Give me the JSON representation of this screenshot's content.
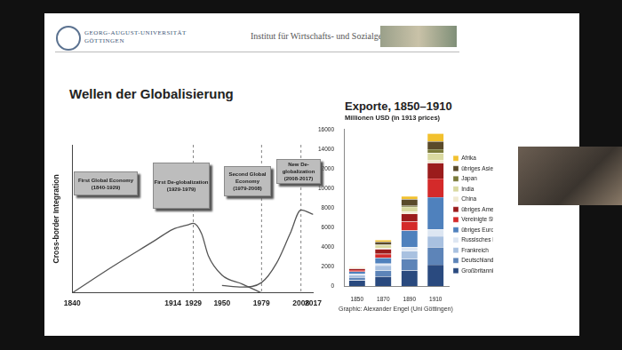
{
  "header": {
    "university": "GEORG-AUGUST-UNIVERSITÄT\nGÖTTINGEN",
    "institute": "Institut für Wirtschafts- und Sozialgeschichte"
  },
  "title": "Wellen der Globalisierung",
  "chart_data": [
    {
      "type": "line",
      "y_label": "Cross-border Integration",
      "series": [
        {
          "x": [
            1840,
            1870,
            1900,
            1914,
            1925,
            1929,
            1935,
            1940,
            1950,
            1965,
            1979
          ],
          "values": [
            0,
            18,
            35,
            43,
            46,
            47,
            40,
            25,
            12,
            6,
            0
          ],
          "color": "#555555",
          "line_style": "solid"
        },
        {
          "x": [
            1950,
            1965,
            1979,
            1990,
            2000,
            2008,
            2017
          ],
          "values": [
            5,
            4,
            7,
            20,
            40,
            56,
            53
          ],
          "color": "#555555",
          "line_style": "solid"
        }
      ],
      "xlim": [
        1840,
        2017
      ],
      "xticks": [
        1840,
        1914,
        1929,
        1950,
        1979,
        2008,
        2017
      ],
      "ylim": [
        0,
        100
      ],
      "tick_labels": "x",
      "grid": false,
      "vlines": [
        1929,
        1979,
        2008
      ],
      "annotations": [
        {
          "title": "First Global Economy",
          "period": "(1840-1929)"
        },
        {
          "title": "First De-globalization",
          "period": "(1929-1979)"
        },
        {
          "title": "Second Global Economy",
          "period": "(1979-2008)"
        },
        {
          "title": "New De-globalization",
          "period": "(2008-2017)"
        }
      ]
    },
    {
      "type": "bar",
      "title": "Exporte, 1850–1910",
      "subtitle": "Millionen USD (in 1913 prices)",
      "categories": [
        "1850",
        "1870",
        "1890",
        "1910"
      ],
      "stacked": true,
      "ylim": [
        0,
        16000
      ],
      "yticks": [
        0,
        2000,
        4000,
        6000,
        8000,
        10000,
        12000,
        14000,
        16000
      ],
      "grid": false,
      "legend": "right",
      "series": [
        {
          "name": "Großbritannien",
          "color": "#2a4a7f",
          "values": [
            600,
            1000,
            1600,
            2200
          ]
        },
        {
          "name": "Deutschland",
          "color": "#5d84b8",
          "values": [
            300,
            600,
            1200,
            1800
          ]
        },
        {
          "name": "Frankreich",
          "color": "#a9c1e0",
          "values": [
            250,
            500,
            800,
            1100
          ]
        },
        {
          "name": "Russisches Reich",
          "color": "#dde6f2",
          "values": [
            100,
            200,
            400,
            700
          ]
        },
        {
          "name": "übriges Europa",
          "color": "#4f81bd",
          "values": [
            250,
            600,
            1700,
            3300
          ]
        },
        {
          "name": "Vereinigte Staaten",
          "color": "#d42a2a",
          "values": [
            150,
            400,
            900,
            1900
          ]
        },
        {
          "name": "übriges Amerika",
          "color": "#9b1c1c",
          "values": [
            150,
            500,
            800,
            1600
          ]
        },
        {
          "name": "China",
          "color": "#f0ead0",
          "values": [
            30,
            100,
            200,
            300
          ]
        },
        {
          "name": "India",
          "color": "#d9d9a0",
          "values": [
            50,
            300,
            500,
            700
          ]
        },
        {
          "name": "Japan",
          "color": "#7a7a3a",
          "values": [
            10,
            30,
            100,
            400
          ]
        },
        {
          "name": "übriges Asien",
          "color": "#5a4a2a",
          "values": [
            40,
            300,
            700,
            800
          ]
        },
        {
          "name": "Afrika",
          "color": "#f2c12e",
          "values": [
            30,
            200,
            300,
            800
          ]
        }
      ],
      "source": "Graphic: Alexander Engel (Uni Göttingen)"
    }
  ]
}
